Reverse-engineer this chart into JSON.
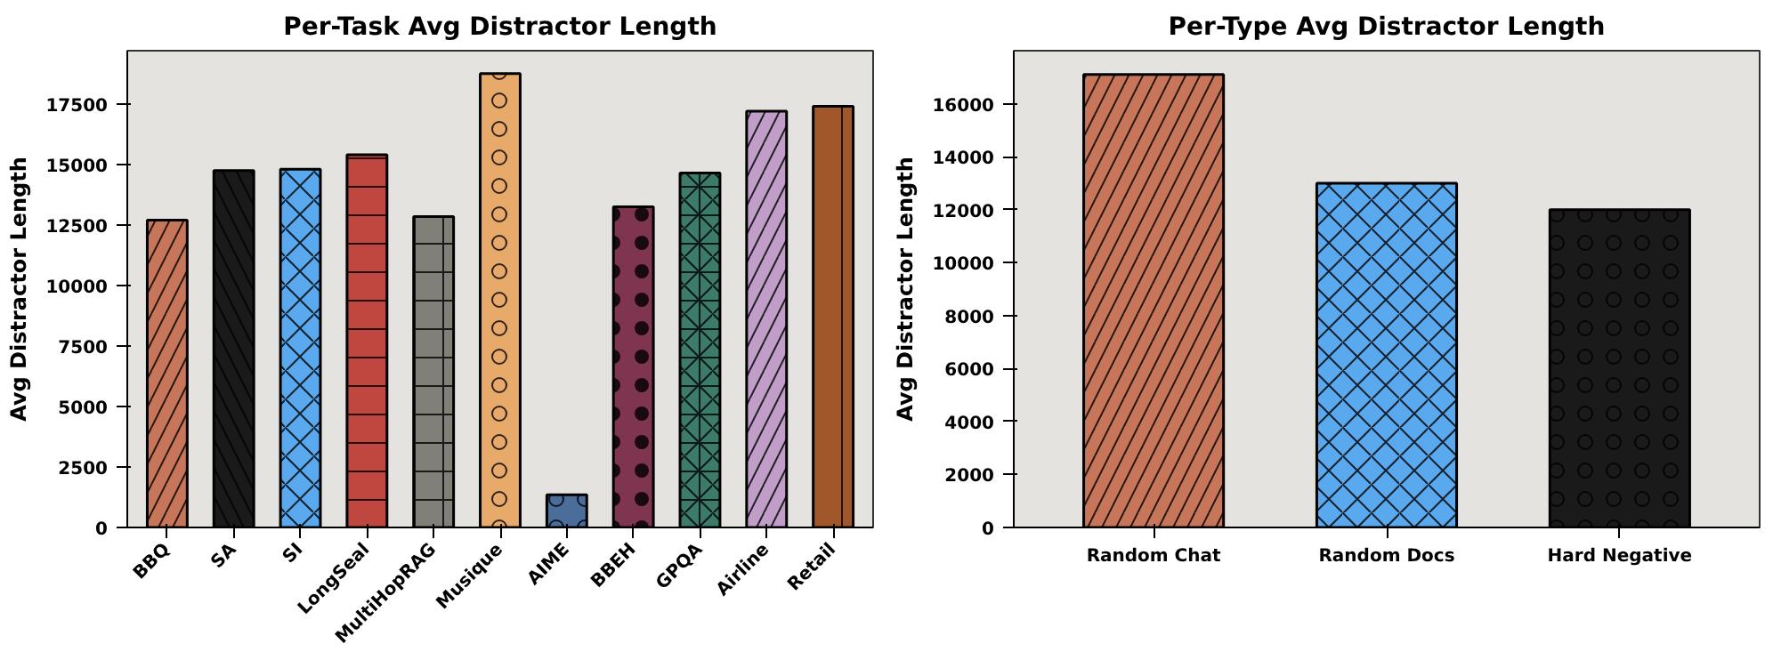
{
  "chart_data": [
    {
      "type": "bar",
      "title": "Per-Task Avg Distractor Length",
      "ylabel": "Avg Distractor Length",
      "categories": [
        "BBQ",
        "SA",
        "SI",
        "LongSeal",
        "MultiHopRAG",
        "Musique",
        "AIME",
        "BBEH",
        "GPQA",
        "Airline",
        "Retail"
      ],
      "values": [
        12700,
        14750,
        14800,
        15400,
        12850,
        18750,
        1350,
        13250,
        14650,
        17200,
        17400
      ],
      "colors": [
        "#c8765a",
        "#1a1a1a",
        "#5aa8ee",
        "#c0473f",
        "#808078",
        "#e8aa6a",
        "#4a6d9a",
        "#7f3450",
        "#3c7a6a",
        "#c09ec8",
        "#a0582a"
      ],
      "ylim": [
        0,
        19700
      ],
      "yticks": [
        0,
        2500,
        5000,
        7500,
        10000,
        12500,
        15000,
        17500
      ],
      "grid": false
    },
    {
      "type": "bar",
      "title": "Per-Type Avg Distractor Length",
      "ylabel": "Avg Distractor Length",
      "categories": [
        "Random Chat",
        "Random Docs",
        "Hard Negative"
      ],
      "values": [
        17100,
        13000,
        12000
      ],
      "colors": [
        "#c8765a",
        "#5aa8ee",
        "#1a1a1a"
      ],
      "ylim": [
        0,
        18000
      ],
      "yticks": [
        0,
        2000,
        4000,
        6000,
        8000,
        10000,
        12000,
        14000,
        16000
      ],
      "grid": false
    }
  ]
}
